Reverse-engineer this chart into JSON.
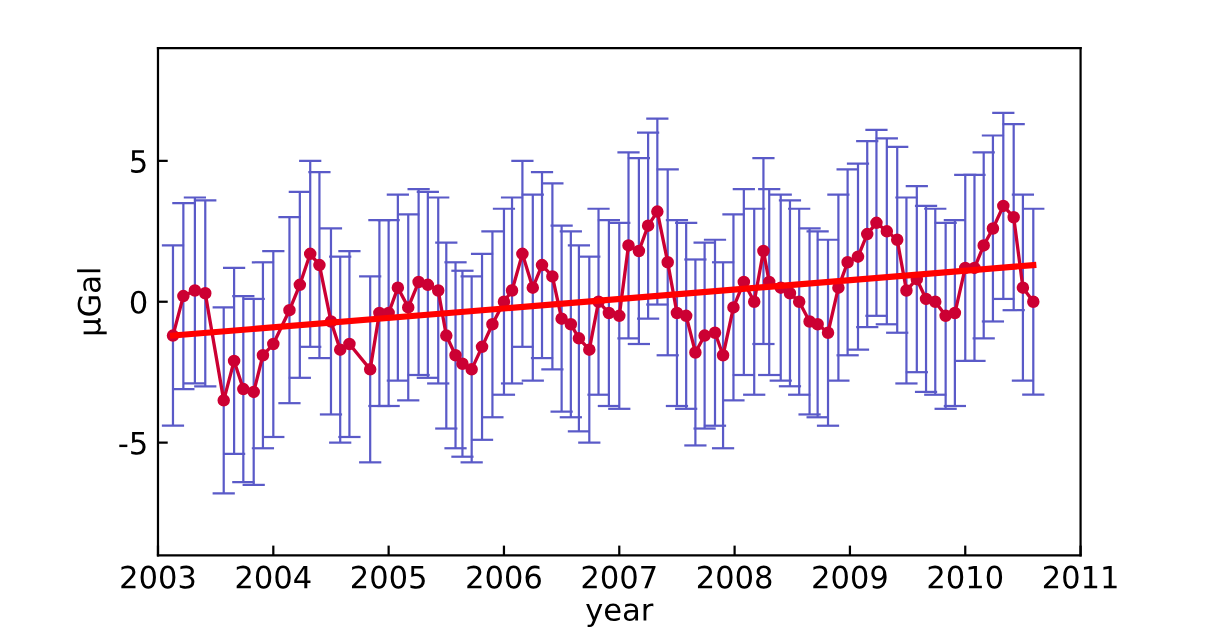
{
  "chart_data": {
    "type": "line",
    "xlabel": "year",
    "ylabel": "μGal",
    "xlim": [
      2003,
      2011
    ],
    "xticks": [
      2003,
      2004,
      2005,
      2006,
      2007,
      2008,
      2009,
      2010,
      2011
    ],
    "ylim": [
      -9,
      9
    ],
    "yticks": [
      -5,
      0,
      5
    ],
    "grid": false,
    "legend": false,
    "series": [
      {
        "marker": "circle",
        "color": "#cc0033",
        "x": [
          2003.13,
          2003.22,
          2003.32,
          2003.41,
          2003.57,
          2003.66,
          2003.74,
          2003.83,
          2003.91,
          2004.0,
          2004.14,
          2004.23,
          2004.32,
          2004.4,
          2004.5,
          2004.58,
          2004.66,
          2004.84,
          2004.92,
          2005.0,
          2005.08,
          2005.17,
          2005.26,
          2005.34,
          2005.43,
          2005.5,
          2005.58,
          2005.64,
          2005.72,
          2005.81,
          2005.9,
          2006.0,
          2006.07,
          2006.16,
          2006.25,
          2006.33,
          2006.42,
          2006.5,
          2006.58,
          2006.65,
          2006.74,
          2006.82,
          2006.91,
          2007.0,
          2007.08,
          2007.17,
          2007.25,
          2007.33,
          2007.42,
          2007.5,
          2007.58,
          2007.66,
          2007.74,
          2007.83,
          2007.9,
          2007.99,
          2008.08,
          2008.17,
          2008.25,
          2008.3,
          2008.4,
          2008.48,
          2008.56,
          2008.65,
          2008.72,
          2008.81,
          2008.9,
          2008.98,
          2009.07,
          2009.15,
          2009.23,
          2009.32,
          2009.41,
          2009.49,
          2009.58,
          2009.66,
          2009.74,
          2009.83,
          2009.91,
          2010.0,
          2010.08,
          2010.16,
          2010.24,
          2010.33,
          2010.42,
          2010.5,
          2010.59
        ],
        "values": [
          -1.2,
          0.2,
          0.4,
          0.3,
          -3.5,
          -2.1,
          -3.1,
          -3.2,
          -1.9,
          -1.5,
          -0.3,
          0.6,
          1.7,
          1.3,
          -0.7,
          -1.7,
          -1.5,
          -2.4,
          -0.4,
          -0.4,
          0.5,
          -0.2,
          0.7,
          0.6,
          0.4,
          -1.2,
          -1.9,
          -2.2,
          -2.4,
          -1.6,
          -0.8,
          0.0,
          0.4,
          1.7,
          0.5,
          1.3,
          0.9,
          -0.6,
          -0.8,
          -1.3,
          -1.7,
          0.0,
          -0.4,
          -0.5,
          2.0,
          1.8,
          2.7,
          3.2,
          1.4,
          -0.4,
          -0.5,
          -1.8,
          -1.2,
          -1.1,
          -1.9,
          -0.2,
          0.7,
          0.0,
          1.8,
          0.7,
          0.5,
          0.3,
          0.0,
          -0.7,
          -0.8,
          -1.1,
          0.5,
          1.4,
          1.6,
          2.4,
          2.8,
          2.5,
          2.2,
          0.4,
          0.8,
          0.1,
          0.0,
          -0.5,
          -0.4,
          1.2,
          1.2,
          2.0,
          2.6,
          3.4,
          3.0,
          0.5,
          0.0
        ],
        "errors": [
          3.2,
          3.3,
          3.3,
          3.3,
          3.3,
          3.3,
          3.3,
          3.3,
          3.3,
          3.3,
          3.3,
          3.3,
          3.3,
          3.3,
          3.3,
          3.3,
          3.3,
          3.3,
          3.3,
          3.3,
          3.3,
          3.3,
          3.3,
          3.3,
          3.3,
          3.3,
          3.3,
          3.3,
          3.3,
          3.3,
          3.3,
          3.3,
          3.3,
          3.3,
          3.3,
          3.3,
          3.3,
          3.3,
          3.3,
          3.3,
          3.3,
          3.3,
          3.3,
          3.3,
          3.3,
          3.3,
          3.3,
          3.3,
          3.3,
          3.3,
          3.3,
          3.3,
          3.3,
          3.3,
          3.3,
          3.3,
          3.3,
          3.3,
          3.3,
          3.3,
          3.3,
          3.3,
          3.3,
          3.3,
          3.3,
          3.3,
          3.3,
          3.3,
          3.3,
          3.3,
          3.3,
          3.3,
          3.3,
          3.3,
          3.3,
          3.3,
          3.3,
          3.3,
          3.3,
          3.3,
          3.3,
          3.3,
          3.3,
          3.3,
          3.3,
          3.3,
          3.3
        ]
      },
      {
        "marker": "none",
        "color": "#ff0000",
        "x": [
          2003.13,
          2010.59
        ],
        "values": [
          -1.2,
          1.3
        ]
      }
    ]
  }
}
